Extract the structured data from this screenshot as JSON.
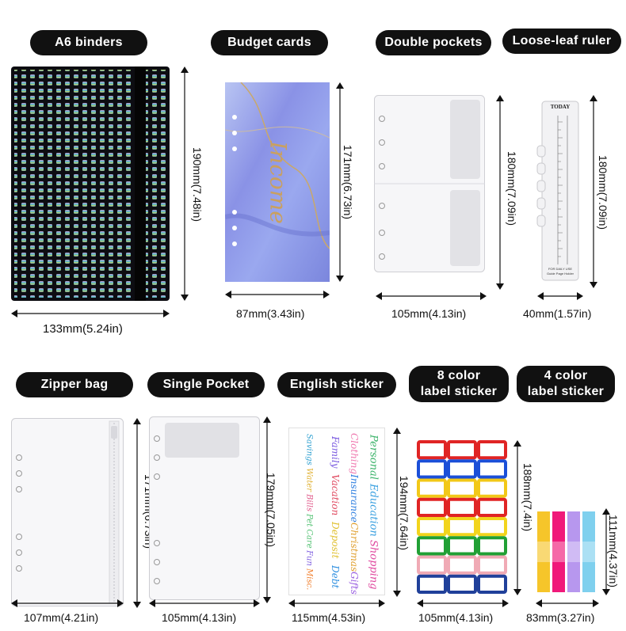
{
  "labels": {
    "a6_binders": "A6 binders",
    "budget_cards": "Budget cards",
    "double_pockets": "Double pockets",
    "loose_leaf_ruler": "Loose-leaf ruler",
    "zipper_bag": "Zipper bag",
    "single_pocket": "Single Pocket",
    "english_sticker": "English sticker",
    "color8_line1": "8 color",
    "color8_line2": "label sticker",
    "color4_line1": "4 color",
    "color4_line2": "label sticker"
  },
  "dimensions": {
    "binder_w": "133mm(5.24in)",
    "binder_h": "190mm(7.48in)",
    "card_w": "87mm(3.43in)",
    "card_h": "171mm(6.73in)",
    "double_w": "105mm(4.13in)",
    "double_h": "180mm(7.09in)",
    "ruler_w": "40mm(1.57in)",
    "ruler_h": "180mm(7.09in)",
    "zipper_w": "107mm(4.21in)",
    "zipper_h": "171mm(6.73in)",
    "single_w": "105mm(4.13in)",
    "single_h": "179mm(7.05in)",
    "english_w": "115mm(4.53in)",
    "english_h": "194mm(7.64in)",
    "color8_w": "105mm(4.13in)",
    "color8_h": "188mm(7.4in)",
    "color4_w": "83mm(3.27in)",
    "color4_h": "111mm(4.37in)"
  },
  "card_script": "Income",
  "ruler": {
    "top": "TODAY",
    "bottom1": "FOR DAILY USE",
    "bottom2": "Guide Page Holder"
  },
  "sticker_words": [
    [
      "Personal",
      "Education",
      "Shopping"
    ],
    [
      "Clothing",
      "Insurance",
      "Christmas",
      "Gifts"
    ],
    [
      "Family",
      "Vacation",
      "Deposit",
      "Debt"
    ],
    [
      "Savings",
      "Water",
      "Bills",
      "Pet Care",
      "Fun",
      "Misc."
    ]
  ],
  "colors": {
    "pill": "#111111",
    "binder": "#0d0d12",
    "card_marble": "#8a92e6",
    "label8": [
      "#e02424",
      "#1b4fd8",
      "#f2c818",
      "#e02424",
      "#f2d41c",
      "#21a035",
      "#f0aab5",
      "#20409a"
    ],
    "label4": [
      "#f6c52a",
      "#f0197a",
      "#b797ee",
      "#7fd0ee"
    ]
  }
}
